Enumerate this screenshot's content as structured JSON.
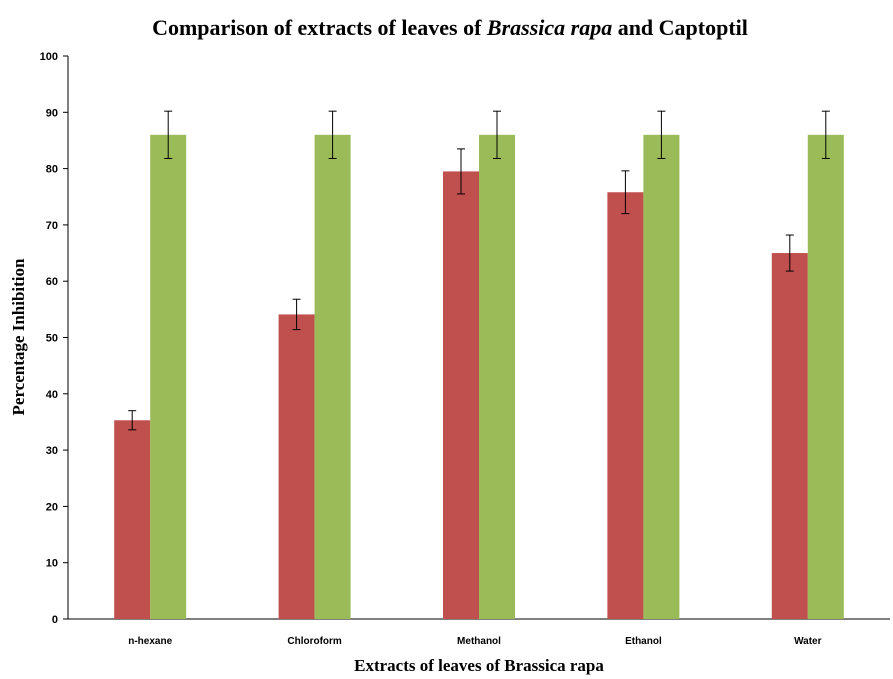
{
  "chart_data": {
    "type": "bar",
    "title": {
      "before": "Comparison of extracts of leaves of ",
      "italic": "Brassica rapa",
      "after": " and Captoptil"
    },
    "xlabel": "Extracts of leaves of Brassica rapa",
    "ylabel": "Percentage Inhibition",
    "categories": [
      "n-hexane",
      "Chloroform",
      "Methanol",
      "Ethanol",
      "Water"
    ],
    "series": [
      {
        "color": "#c0504d",
        "values": [
          35.3,
          54.1,
          79.5,
          75.8,
          65.0
        ],
        "errors": [
          1.7,
          2.7,
          4.0,
          3.8,
          3.2
        ]
      },
      {
        "color": "#9bbb59",
        "values": [
          86.0,
          86.0,
          86.0,
          86.0,
          86.0
        ],
        "errors": [
          4.2,
          4.2,
          4.2,
          4.2,
          4.2
        ]
      }
    ],
    "ylim": [
      0,
      100
    ],
    "yticks": [
      0,
      10,
      20,
      30,
      40,
      50,
      60,
      70,
      80,
      90,
      100
    ],
    "grid": false,
    "legend": "none"
  }
}
